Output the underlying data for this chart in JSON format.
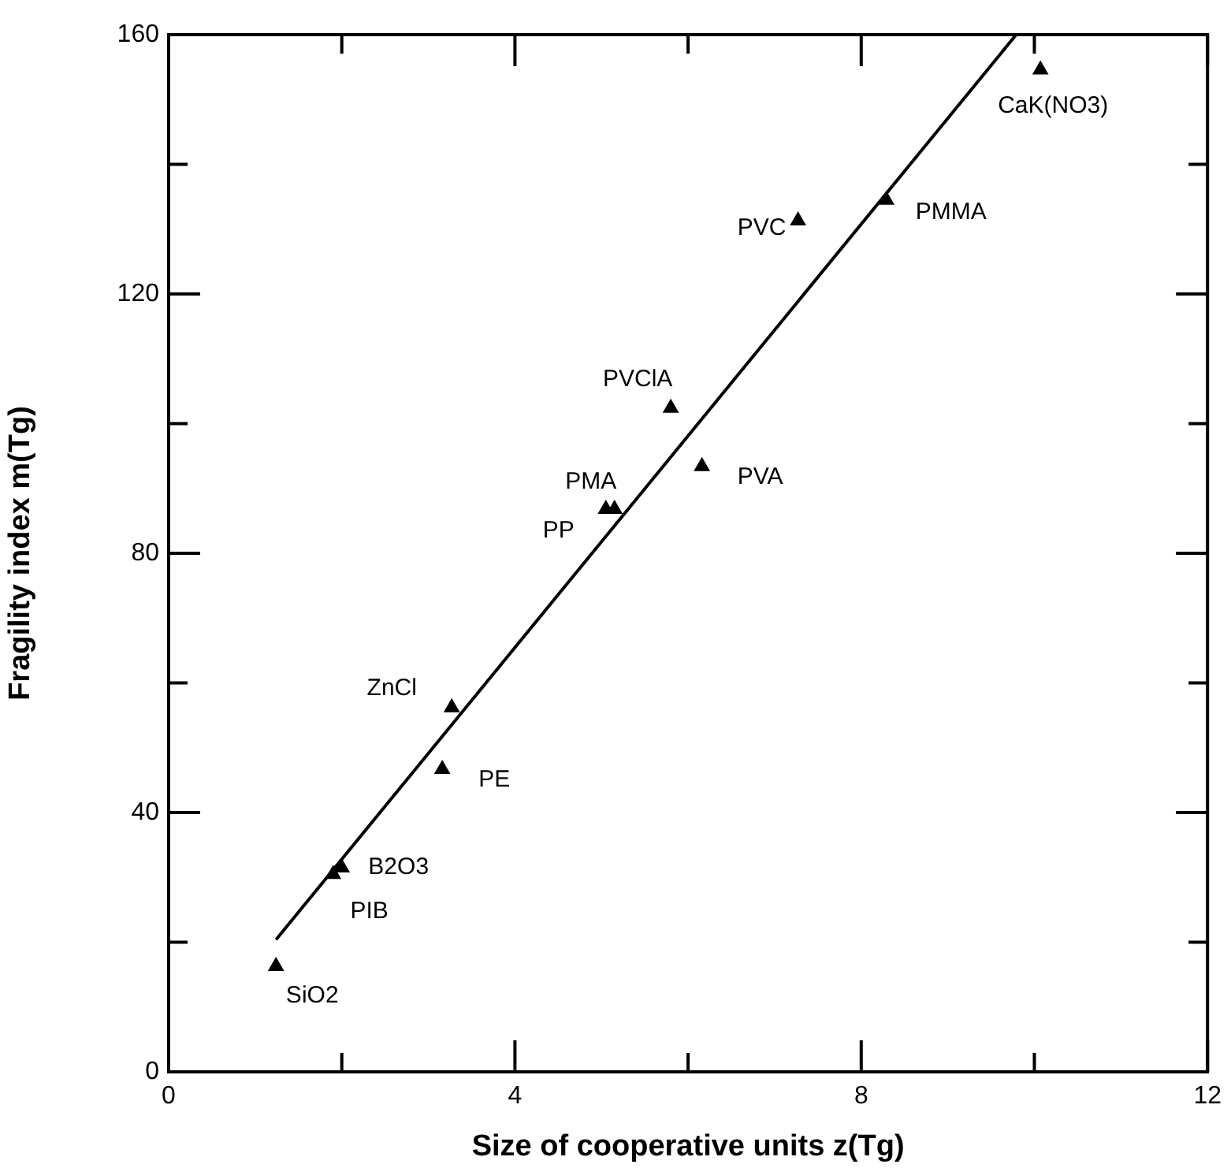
{
  "chart_data": {
    "type": "scatter",
    "xlabel": "Size of cooperative units z(Tg)",
    "ylabel": "Fragility index m(Tg)",
    "xlim": [
      0,
      12
    ],
    "xticks": [
      0,
      {
        "value": 2,
        "label": null
      },
      4,
      {
        "value": 6,
        "label": null
      },
      8,
      {
        "value": 10,
        "label": null
      },
      12
    ],
    "ylim": [
      0,
      160
    ],
    "yticks": [
      0,
      {
        "value": 20,
        "label": null
      },
      40,
      {
        "value": 60,
        "label": null
      },
      80,
      {
        "value": 100,
        "label": null
      },
      120,
      {
        "value": 140,
        "label": null
      },
      160
    ],
    "grid": false,
    "legend": false,
    "marker": "triangle",
    "series": [
      {
        "type": "scatter",
        "color": "#000000",
        "x": [
          1.24,
          1.9,
          2.0,
          3.16,
          3.27,
          5.05,
          5.15,
          5.8,
          6.16,
          7.27,
          8.29,
          10.07
        ],
        "values": [
          16.3,
          30.5,
          31.5,
          46.7,
          56.2,
          86.8,
          86.8,
          102.4,
          93.4,
          131.3,
          134.5,
          154.6
        ]
      },
      {
        "type": "line",
        "color": "#000000",
        "marker": "none",
        "x": [
          1.24,
          9.79
        ],
        "values": [
          20.4,
          160
        ]
      }
    ],
    "annotations": [
      {
        "text": "SiO2",
        "x": 1.24,
        "y": 16.3
      },
      {
        "text": "PIB",
        "x": 1.9,
        "y": 30.5
      },
      {
        "text": "B2O3",
        "x": 2.0,
        "y": 31.5
      },
      {
        "text": "PE",
        "x": 3.16,
        "y": 46.7
      },
      {
        "text": "ZnCl",
        "x": 3.27,
        "y": 56.2
      },
      {
        "text": "PP",
        "x": 5.05,
        "y": 86.8
      },
      {
        "text": "PMA",
        "x": 5.15,
        "y": 86.8
      },
      {
        "text": "PVClA",
        "x": 5.8,
        "y": 102.4
      },
      {
        "text": "PVA",
        "x": 6.16,
        "y": 93.4
      },
      {
        "text": "PVC",
        "x": 7.27,
        "y": 131.3
      },
      {
        "text": "PMMA",
        "x": 8.29,
        "y": 134.5
      },
      {
        "text": "CaK(NO3)",
        "x": 10.07,
        "y": 154.6
      }
    ]
  }
}
